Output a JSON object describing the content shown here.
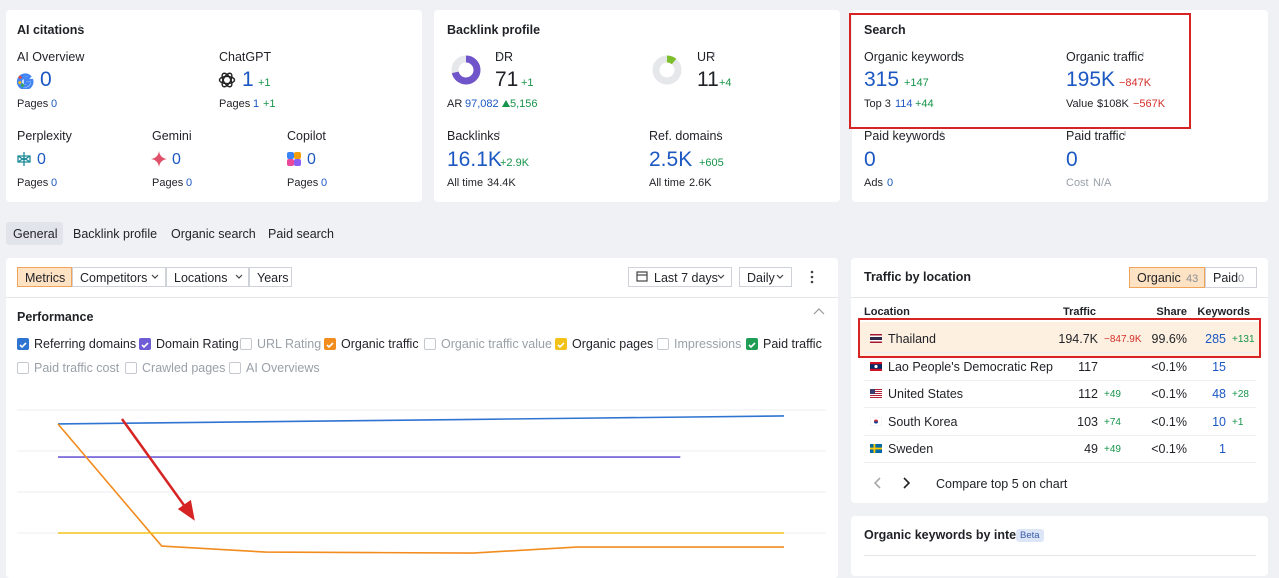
{
  "ai_citations": {
    "title": "AI citations",
    "ai_overview": {
      "label": "AI Overview",
      "value": 0,
      "pages_label": "Pages",
      "pages": 0
    },
    "chatgpt": {
      "label": "ChatGPT",
      "value": 1,
      "change": "+1",
      "pages_label": "Pages",
      "pages": 1,
      "pages_change": "+1"
    },
    "perplexity": {
      "label": "Perplexity",
      "value": 0,
      "pages_label": "Pages",
      "pages": 0
    },
    "gemini": {
      "label": "Gemini",
      "value": 0,
      "pages_label": "Pages",
      "pages": 0
    },
    "copilot": {
      "label": "Copilot",
      "value": 0,
      "pages_label": "Pages",
      "pages": 0
    }
  },
  "backlink_profile": {
    "title": "Backlink profile",
    "dr": {
      "label": "DR",
      "value": 71,
      "change": "+1"
    },
    "ar": {
      "label": "AR",
      "value": "97,082",
      "change": "5,156"
    },
    "ur": {
      "label": "UR",
      "value": 11,
      "change": "+4"
    },
    "backlinks": {
      "label": "Backlinks",
      "value": "16.1K",
      "change": "+2.9K",
      "sub_label": "All time",
      "sub_value": "34.4K"
    },
    "ref_domains": {
      "label": "Ref. domains",
      "value": "2.5K",
      "change": "+605",
      "sub_label": "All time",
      "sub_value": "2.6K"
    }
  },
  "search": {
    "title": "Search",
    "organic_keywords": {
      "label": "Organic keywords",
      "value": "315",
      "change": "+147",
      "sub_label": "Top 3",
      "sub_value": "114",
      "sub_change": "+44"
    },
    "organic_traffic": {
      "label": "Organic traffic",
      "value": "195K",
      "change": "−847K",
      "sub_label": "Value",
      "sub_value": "$108K",
      "sub_change": "−567K"
    },
    "paid_keywords": {
      "label": "Paid keywords",
      "value": "0",
      "sub_label": "Ads",
      "sub_value": "0"
    },
    "paid_traffic": {
      "label": "Paid traffic",
      "value": "0",
      "sub_label": "Cost",
      "sub_value": "N/A"
    }
  },
  "tabs": [
    "General",
    "Backlink profile",
    "Organic search",
    "Paid search"
  ],
  "toolbar": {
    "buttons": [
      "Metrics",
      "Competitors",
      "Locations",
      "Years"
    ],
    "date_range": "Last 7 days",
    "interval": "Daily"
  },
  "performance": {
    "title": "Performance"
  },
  "chart_data": {
    "type": "line",
    "categories": [
      null,
      null,
      null,
      null,
      null,
      null,
      null,
      null
    ],
    "ylim": [
      0,
      100
    ],
    "series": [
      {
        "name": "Referring domains",
        "checked": true,
        "color": "#2f74d0",
        "values": [
          85.3,
          86.0,
          86.7,
          87.4,
          88.1,
          88.8,
          89.5,
          90.2
        ]
      },
      {
        "name": "Domain Rating",
        "checked": true,
        "color": "#6e5bd6",
        "values": [
          65,
          65,
          65,
          65,
          65,
          65,
          65,
          null
        ]
      },
      {
        "name": "URL Rating",
        "checked": false,
        "values": [
          null,
          null,
          null,
          null,
          null,
          null,
          null,
          null
        ]
      },
      {
        "name": "Organic traffic",
        "checked": true,
        "color": "#f28c1e",
        "values": [
          85.3,
          10.4,
          6.7,
          6.4,
          6.1,
          9.8,
          9.8,
          9.8
        ]
      },
      {
        "name": "Organic traffic value",
        "checked": false,
        "values": [
          null,
          null,
          null,
          null,
          null,
          null,
          null,
          null
        ]
      },
      {
        "name": "Organic pages",
        "checked": true,
        "color": "#f2c21b",
        "values": [
          18.4,
          18.4,
          18.4,
          18.4,
          18.4,
          18.4,
          18.4,
          18.4
        ]
      },
      {
        "name": "Impressions",
        "checked": false,
        "values": [
          null,
          null,
          null,
          null,
          null,
          null,
          null,
          null
        ]
      },
      {
        "name": "Paid traffic",
        "checked": true,
        "color": "#1f9d55",
        "values": [
          null,
          null,
          null,
          null,
          null,
          null,
          null,
          null
        ]
      },
      {
        "name": "Paid traffic cost",
        "checked": false,
        "values": [
          null,
          null,
          null,
          null,
          null,
          null,
          null,
          null
        ]
      },
      {
        "name": "Crawled pages",
        "checked": false,
        "values": [
          null,
          null,
          null,
          null,
          null,
          null,
          null,
          null
        ]
      },
      {
        "name": "AI Overviews",
        "checked": false,
        "values": [
          null,
          null,
          null,
          null,
          null,
          null,
          null,
          null
        ]
      }
    ]
  },
  "traffic_by_location": {
    "title": "Traffic by location",
    "toggle": [
      {
        "label": "Organic",
        "count": 43,
        "active": true
      },
      {
        "label": "Paid",
        "count": 0,
        "active": false
      }
    ],
    "columns": [
      "Location",
      "Traffic",
      "Share",
      "Keywords"
    ],
    "rows": [
      {
        "country": "Thailand",
        "traffic": "194.7K",
        "traffic_change": "−847.9K",
        "share": "99.6%",
        "keywords": "285",
        "keywords_change": "+131"
      },
      {
        "country": "Lao People's Democratic Rep",
        "traffic": "117",
        "traffic_change": null,
        "share": "<0.1%",
        "keywords": "15",
        "keywords_change": null
      },
      {
        "country": "United States",
        "traffic": "112",
        "traffic_change": "+49",
        "share": "<0.1%",
        "keywords": "48",
        "keywords_change": "+28"
      },
      {
        "country": "South Korea",
        "traffic": "103",
        "traffic_change": "+74",
        "share": "<0.1%",
        "keywords": "10",
        "keywords_change": "+1"
      },
      {
        "country": "Sweden",
        "traffic": "49",
        "traffic_change": "+49",
        "share": "<0.1%",
        "keywords": "1",
        "keywords_change": null
      }
    ],
    "compare": "Compare top 5 on chart"
  },
  "intent": {
    "title": "Organic keywords by intent",
    "badge": "Beta"
  }
}
